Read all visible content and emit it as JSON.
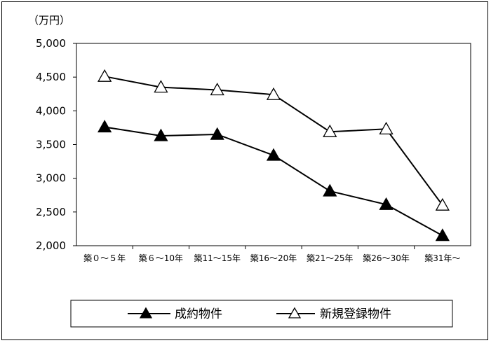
{
  "chart_data": {
    "type": "line",
    "ylabel": "（万円）",
    "ylim": [
      2000,
      5000
    ],
    "yticks": [
      2000,
      2500,
      3000,
      3500,
      4000,
      4500,
      5000
    ],
    "ytick_labels": [
      "2,000",
      "2,500",
      "3,000",
      "3,500",
      "4,000",
      "4,500",
      "5,000"
    ],
    "categories": [
      "築０～５年",
      "築６～10年",
      "築11～15年",
      "築16～20年",
      "築21～25年",
      "築26～30年",
      "築31年～"
    ],
    "series": [
      {
        "name": "成約物件",
        "marker": "filled-triangle",
        "values": [
          3760,
          3630,
          3650,
          3340,
          2810,
          2610,
          2150
        ]
      },
      {
        "name": "新規登録物件",
        "marker": "open-triangle",
        "values": [
          4510,
          4350,
          4310,
          4240,
          3690,
          3730,
          2600
        ]
      }
    ],
    "grid": false,
    "legend_position": "bottom"
  }
}
